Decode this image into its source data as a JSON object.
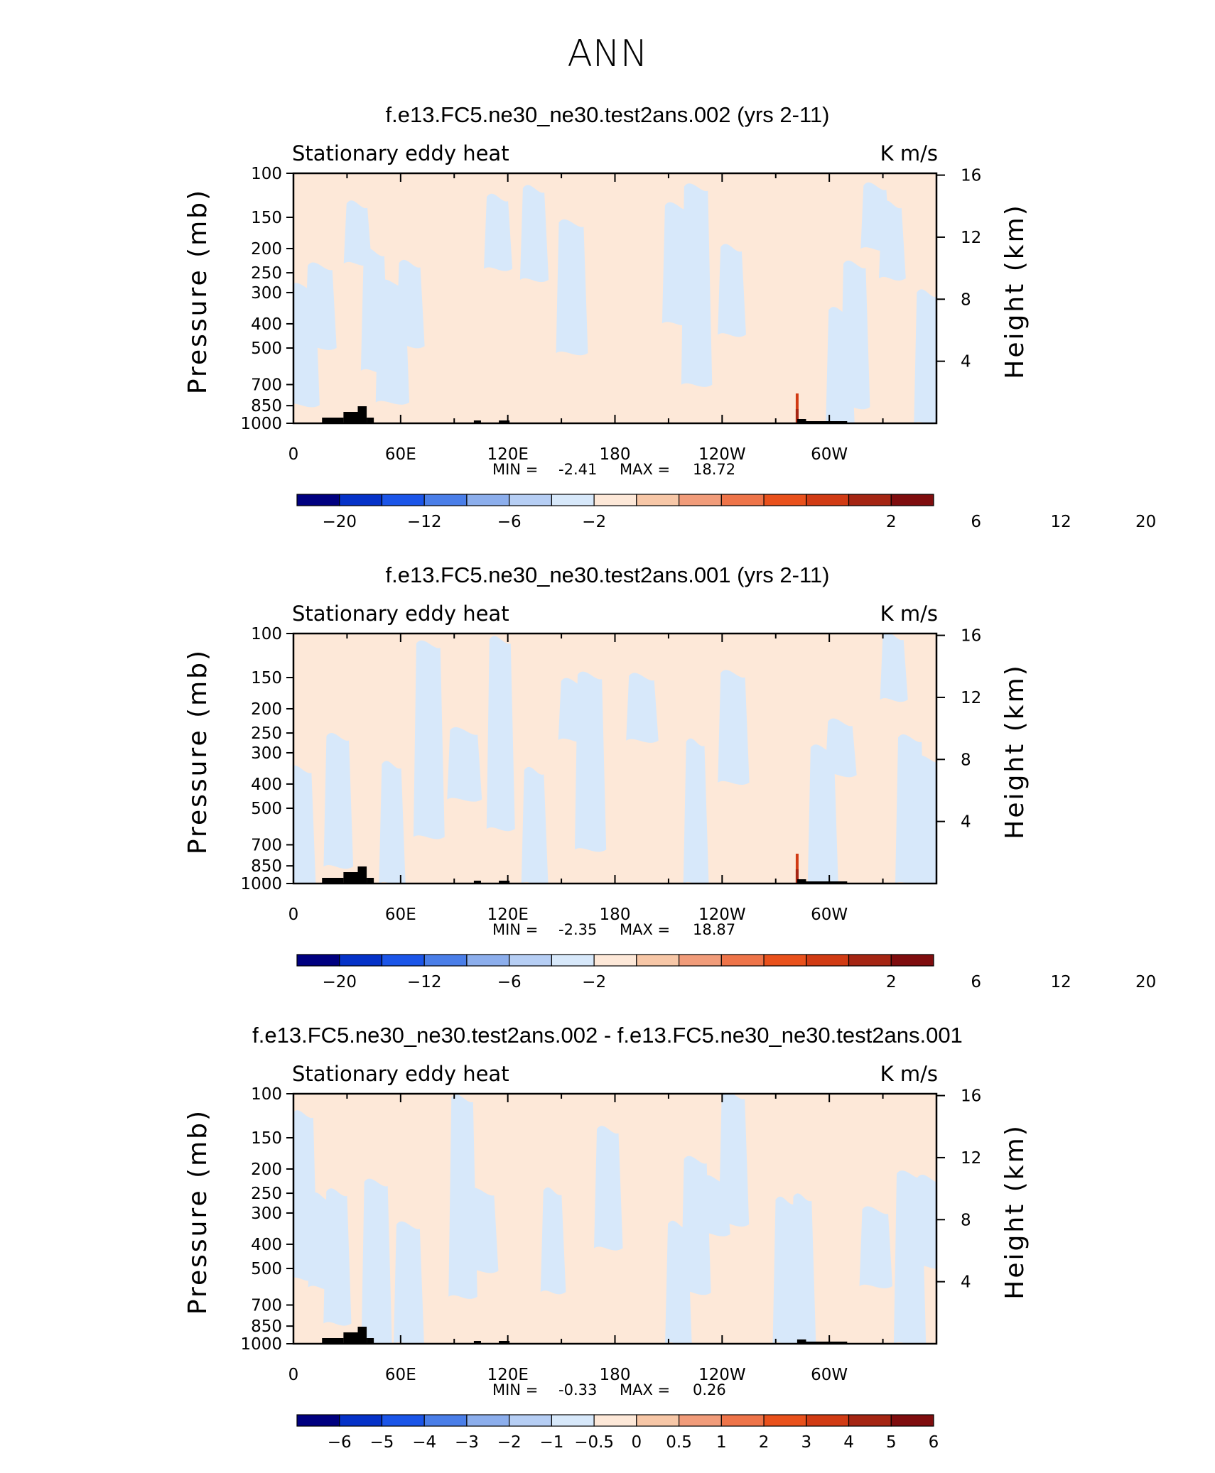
{
  "figure": {
    "title": "ANN"
  },
  "chart_data": [
    {
      "type": "heatmap",
      "title": "f.e13.FC5.ne30_ne30.test2ans.002 (yrs 2-11)",
      "left_string": "Stationary eddy heat",
      "right_string": "K m/s",
      "ylabel": "Pressure (mb)",
      "y2label": "Height (km)",
      "yticks": [
        "100",
        "150",
        "200",
        "250",
        "300",
        "400",
        "500",
        "700",
        "850",
        "1000"
      ],
      "y2ticks": [
        "16",
        "12",
        "8",
        "4"
      ],
      "xticks": [
        "0",
        "60E",
        "120E",
        "180",
        "120W",
        "60W"
      ],
      "xlim": [
        0,
        360
      ],
      "ylim": [
        1000,
        100
      ],
      "y_scale": "log",
      "stats": {
        "min_label": "MIN =",
        "min": "-2.41",
        "max_label": "MAX =",
        "max": "18.72"
      },
      "levels": [
        "−20",
        "−12",
        "−6",
        "−2",
        "2",
        "6",
        "12",
        "20"
      ],
      "colors": [
        "#000080",
        "#0532c8",
        "#1b55e8",
        "#4a7ee8",
        "#8caeec",
        "#b6cef4",
        "#d7e8fa",
        "#fde8d8",
        "#f7c7a7",
        "#f19c7a",
        "#ee7449",
        "#e9511c",
        "#d13b14",
        "#a52513",
        "#7f0d0e"
      ],
      "dominant_fields": {
        "positive": "#fde8d8",
        "negative": "#d7e8fa"
      },
      "peak": {
        "lon": 282,
        "value": 18.72
      }
    },
    {
      "type": "heatmap",
      "title": "f.e13.FC5.ne30_ne30.test2ans.001 (yrs 2-11)",
      "left_string": "Stationary eddy heat",
      "right_string": "K m/s",
      "ylabel": "Pressure (mb)",
      "y2label": "Height (km)",
      "yticks": [
        "100",
        "150",
        "200",
        "250",
        "300",
        "400",
        "500",
        "700",
        "850",
        "1000"
      ],
      "y2ticks": [
        "16",
        "12",
        "8",
        "4"
      ],
      "xticks": [
        "0",
        "60E",
        "120E",
        "180",
        "120W",
        "60W"
      ],
      "xlim": [
        0,
        360
      ],
      "ylim": [
        1000,
        100
      ],
      "y_scale": "log",
      "stats": {
        "min_label": "MIN =",
        "min": "-2.35",
        "max_label": "MAX =",
        "max": "18.87"
      },
      "levels": [
        "−20",
        "−12",
        "−6",
        "−2",
        "2",
        "6",
        "12",
        "20"
      ],
      "colors": [
        "#000080",
        "#0532c8",
        "#1b55e8",
        "#4a7ee8",
        "#8caeec",
        "#b6cef4",
        "#d7e8fa",
        "#fde8d8",
        "#f7c7a7",
        "#f19c7a",
        "#ee7449",
        "#e9511c",
        "#d13b14",
        "#a52513",
        "#7f0d0e"
      ],
      "dominant_fields": {
        "positive": "#fde8d8",
        "negative": "#d7e8fa"
      },
      "peak": {
        "lon": 282,
        "value": 18.87
      }
    },
    {
      "type": "heatmap",
      "title": "f.e13.FC5.ne30_ne30.test2ans.002 - f.e13.FC5.ne30_ne30.test2ans.001",
      "left_string": "Stationary eddy heat",
      "right_string": "K m/s",
      "ylabel": "Pressure (mb)",
      "y2label": "Height (km)",
      "yticks": [
        "100",
        "150",
        "200",
        "250",
        "300",
        "400",
        "500",
        "700",
        "850",
        "1000"
      ],
      "y2ticks": [
        "16",
        "12",
        "8",
        "4"
      ],
      "xticks": [
        "0",
        "60E",
        "120E",
        "180",
        "120W",
        "60W"
      ],
      "xlim": [
        0,
        360
      ],
      "ylim": [
        1000,
        100
      ],
      "y_scale": "log",
      "stats": {
        "min_label": "MIN =",
        "min": "-0.33",
        "max_label": "MAX =",
        "max": "0.26"
      },
      "levels": [
        "−6",
        "−5",
        "−4",
        "−3",
        "−2",
        "−1",
        "−0.5",
        "0",
        "0.5",
        "1",
        "2",
        "3",
        "4",
        "5",
        "6"
      ],
      "colors": [
        "#000080",
        "#0532c8",
        "#1b55e8",
        "#4a7ee8",
        "#8caeec",
        "#b6cef4",
        "#d7e8fa",
        "#fde8d8",
        "#f7c7a7",
        "#f19c7a",
        "#ee7449",
        "#e9511c",
        "#d13b14",
        "#a52513",
        "#7f0d0e"
      ],
      "dominant_fields": {
        "positive": "#fde8d8",
        "negative": "#d7e8fa"
      },
      "peak": null
    }
  ]
}
